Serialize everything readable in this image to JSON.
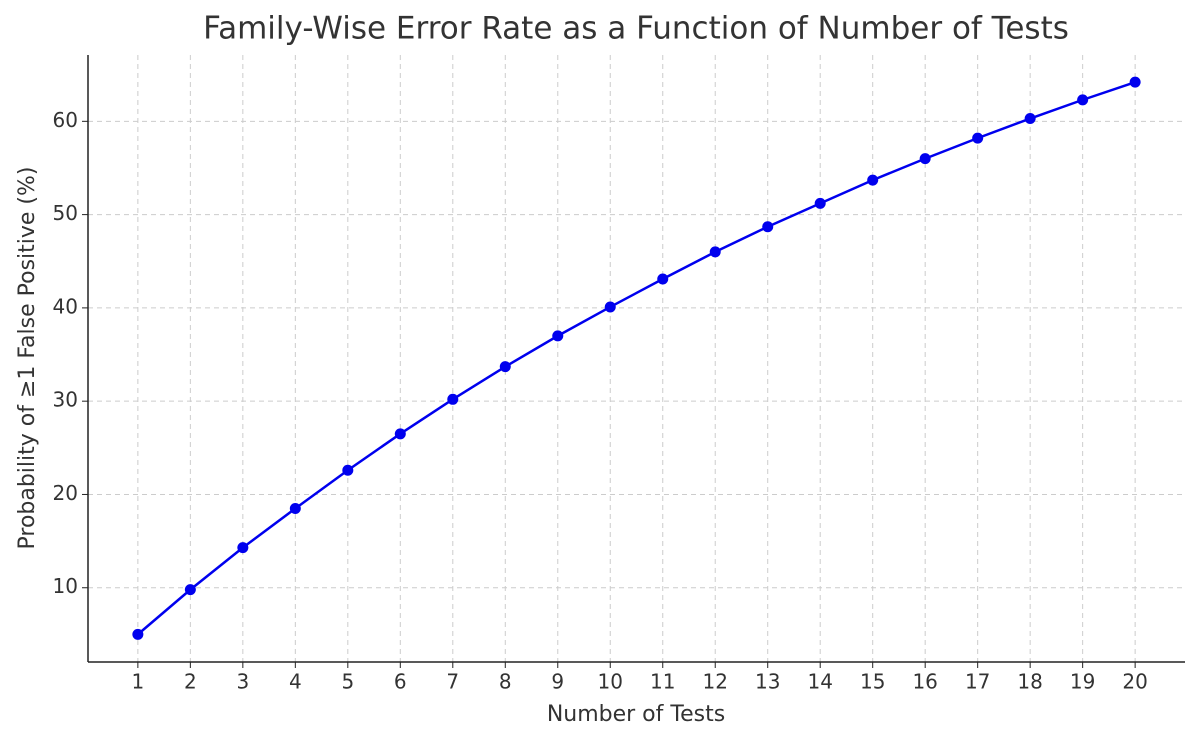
{
  "chart_data": {
    "type": "line",
    "title": "Family-Wise Error Rate as a Function of Number of Tests",
    "x_label": "Number of Tests",
    "y_label": "Probability of ≥1 False Positive (%)",
    "x": [
      1,
      2,
      3,
      4,
      5,
      6,
      7,
      8,
      9,
      10,
      11,
      12,
      13,
      14,
      15,
      16,
      17,
      18,
      19,
      20
    ],
    "values": [
      5.0,
      9.8,
      14.3,
      18.5,
      22.6,
      26.5,
      30.2,
      33.7,
      37.0,
      40.1,
      43.1,
      46.0,
      48.7,
      51.2,
      53.7,
      56.0,
      58.2,
      60.3,
      62.3,
      64.2
    ],
    "color": "#0000ee",
    "xlim": [
      0.05,
      20.95
    ],
    "xticks": [
      1,
      2,
      3,
      4,
      5,
      6,
      7,
      8,
      9,
      10,
      11,
      12,
      13,
      14,
      15,
      16,
      17,
      18,
      19,
      20
    ],
    "ylim": [
      2.04,
      67.11
    ],
    "yticks": [
      10,
      20,
      30,
      40,
      50,
      60
    ],
    "grid": true
  }
}
